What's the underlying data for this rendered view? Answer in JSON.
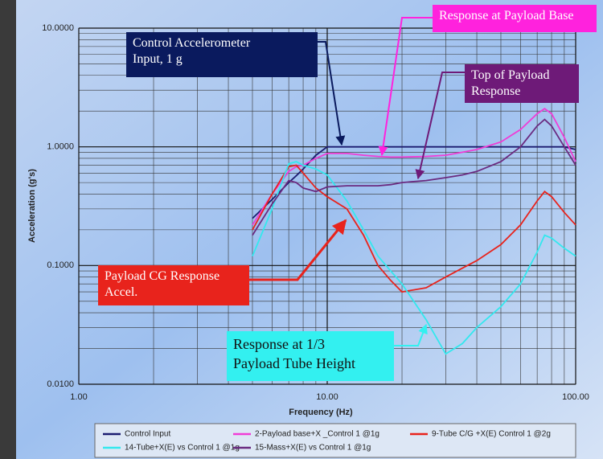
{
  "chart_data": {
    "type": "line",
    "ylabel": "Acceleration (g's)",
    "xlabel": "Frequency (Hz)",
    "xscale": "log",
    "yscale": "log",
    "grid": true,
    "minor_grid": true,
    "legend": "bottom",
    "xlim": [
      1,
      100
    ],
    "xticks": [
      {
        "value": 1,
        "label": "1.00"
      },
      {
        "value": 10,
        "label": "10.00"
      },
      {
        "value": 100,
        "label": "100.00"
      }
    ],
    "ylim": [
      0.01,
      10
    ],
    "yticks": [
      {
        "value": 0.01,
        "label": "0.0100"
      },
      {
        "value": 0.1,
        "label": "0.1000"
      },
      {
        "value": 1,
        "label": "1.0000"
      },
      {
        "value": 10,
        "label": "10.0000"
      }
    ],
    "x": [
      5,
      6,
      7,
      7.5,
      8,
      9,
      10,
      12,
      14,
      16,
      18,
      20,
      25,
      30,
      35,
      40,
      50,
      60,
      70,
      75,
      80,
      90,
      100
    ],
    "series": [
      {
        "name": "Control Input",
        "color": "#1c1c70",
        "values": [
          0.25,
          0.36,
          0.5,
          0.57,
          0.65,
          0.85,
          1.0,
          1.0,
          1.0,
          1.0,
          1.0,
          1.0,
          1.0,
          1.0,
          1.0,
          1.0,
          1.0,
          1.0,
          1.0,
          1.0,
          1.0,
          1.0,
          0.95
        ]
      },
      {
        "name": "2-Payload base+X _Control 1 @1g",
        "color": "#f03cd6",
        "values": [
          0.22,
          0.4,
          0.62,
          0.68,
          0.7,
          0.8,
          0.88,
          0.88,
          0.85,
          0.83,
          0.82,
          0.82,
          0.83,
          0.85,
          0.9,
          0.95,
          1.1,
          1.4,
          1.9,
          2.1,
          1.9,
          1.2,
          0.75
        ]
      },
      {
        "name": "9-Tube C/G +X(E) Control 1 @2g",
        "color": "#e8231c",
        "values": [
          0.2,
          0.4,
          0.68,
          0.7,
          0.6,
          0.45,
          0.38,
          0.3,
          0.18,
          0.1,
          0.075,
          0.06,
          0.065,
          0.08,
          0.095,
          0.11,
          0.15,
          0.22,
          0.35,
          0.42,
          0.38,
          0.28,
          0.22
        ]
      },
      {
        "name": "14-Tube+X(E) vs Control 1 @1g",
        "color": "#33e8ee",
        "values": [
          0.12,
          0.3,
          0.72,
          0.75,
          0.7,
          0.65,
          0.58,
          0.35,
          0.2,
          0.12,
          0.09,
          0.07,
          0.035,
          0.018,
          0.022,
          0.03,
          0.045,
          0.07,
          0.13,
          0.18,
          0.17,
          0.14,
          0.12
        ]
      },
      {
        "name": "15-Mass+X(E) vs Control 1 @1g",
        "color": "#6a2a80",
        "values": [
          0.18,
          0.33,
          0.52,
          0.5,
          0.45,
          0.42,
          0.46,
          0.47,
          0.47,
          0.47,
          0.48,
          0.5,
          0.52,
          0.55,
          0.58,
          0.62,
          0.75,
          1.0,
          1.5,
          1.7,
          1.5,
          1.0,
          0.7
        ]
      }
    ],
    "annotations": [
      {
        "text": "Control Accelerometer\nInput, 1 g",
        "color": "#0a1a5e"
      },
      {
        "text": "Response at Payload Base",
        "color": "#ff22dd"
      },
      {
        "text": "Top of Payload\nResponse",
        "color": "#6e1a78"
      },
      {
        "text": "Payload CG Response\nAccel.",
        "color": "#e8231c"
      },
      {
        "text": "Response at 1/3\nPayload Tube Height",
        "color": "#33f0f0"
      }
    ]
  }
}
